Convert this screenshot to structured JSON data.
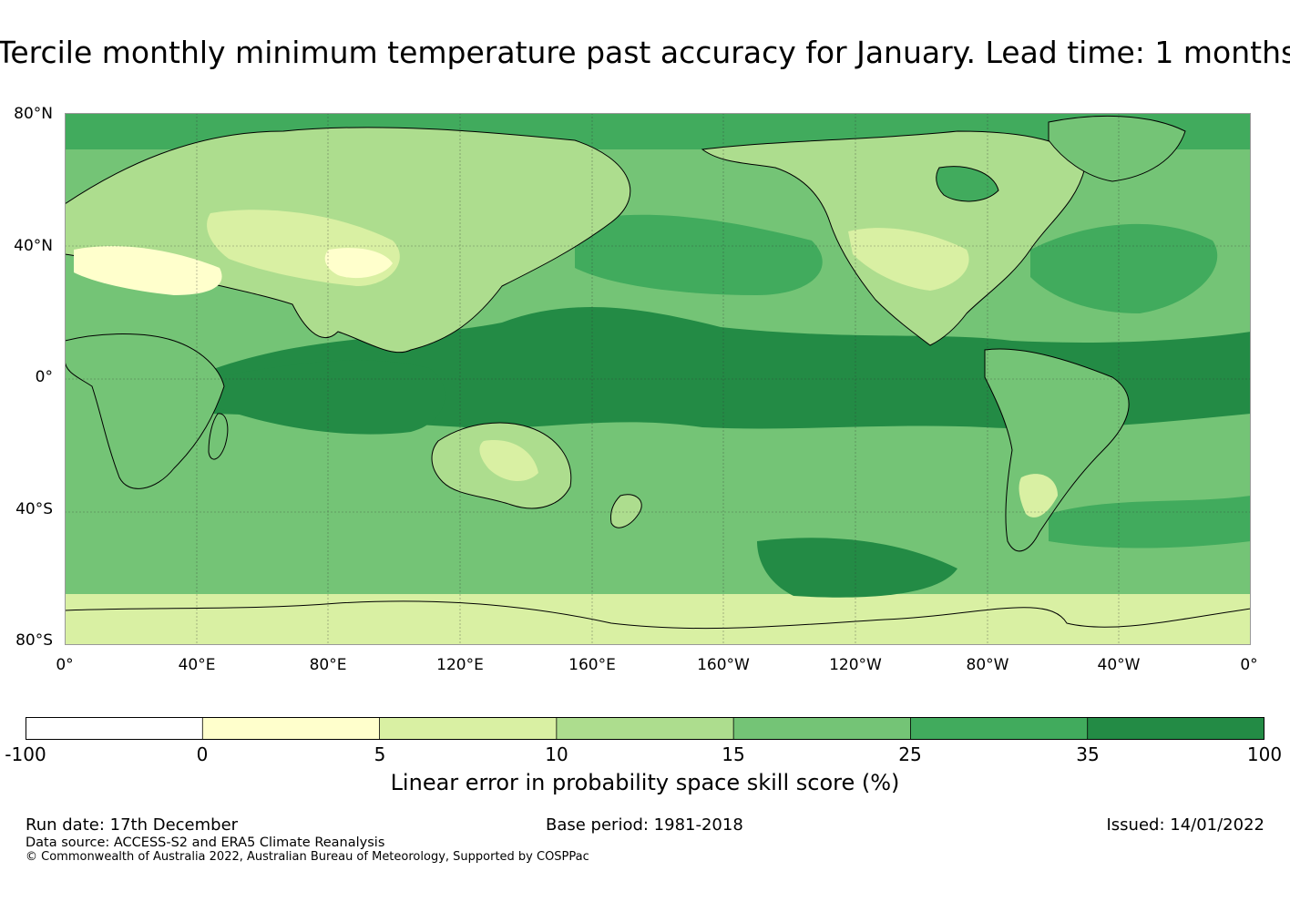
{
  "title": "Tercile monthly minimum temperature past accuracy for January. Lead time: 1 months",
  "map": {
    "lat_labels": [
      "80°N",
      "40°N",
      "0°",
      "40°S",
      "80°S"
    ],
    "lon_labels": [
      "0°",
      "40°E",
      "80°E",
      "120°E",
      "160°E",
      "160°W",
      "120°W",
      "80°W",
      "40°W",
      "0°"
    ],
    "colors": {
      "ocean_band": "#238b45",
      "ocean_mid": "#41ab5d",
      "ocean_light": "#74c476",
      "land": "#addd8e",
      "land_pale": "#d9f0a3",
      "coast": "#000000"
    }
  },
  "colorbar": {
    "ticks": [
      "-100",
      "0",
      "5",
      "10",
      "15",
      "25",
      "35",
      "100"
    ],
    "colors": [
      "#ffffff",
      "#ffffcc",
      "#d9f0a3",
      "#addd8e",
      "#74c476",
      "#41ab5d",
      "#238b45"
    ],
    "label": "Linear error in probability space skill score (%)"
  },
  "footer": {
    "run_date": "Run date: 17th December",
    "base_period": "Base period: 1981-2018",
    "issued": "Issued: 14/01/2022",
    "data_source": "Data source: ACCESS-S2 and ERA5 Climate Reanalysis",
    "copyright": "© Commonwealth of Australia 2022, Australian Bureau of Meteorology, Supported by COSPPac"
  }
}
